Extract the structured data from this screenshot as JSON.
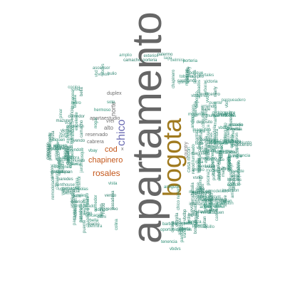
{
  "words": {
    "apartamento": "apartamento",
    "bogota": "bogota",
    "chico": "chico",
    "rosales": "rosales",
    "chapinero": "chapinero",
    "cod": "cod",
    "norte": "norte",
    "alto": "alto",
    "apartaestudio": "apartaestudio",
    "duplex": "duplex",
    "reservado": "reservado",
    "country": "country",
    "cabrera": "cabrera",
    "vrei": "vrei",
    "x": "x",
    "casa_rincon": "casa rincon",
    "chico_navarra": "chico navarra",
    "vista": "vista",
    "hermoso": "hermoso",
    "antiguo": "antiguo",
    "balcones": "balcones",
    "ubicacion": "ubicacion",
    "laureles": "laureles",
    "barbara": "barbara",
    "oportunidad": "oportunidad",
    "vbdvs": "vbdvs",
    "tenencia": "tenencia",
    "moderno": "moderno",
    "nogal": "nogal",
    "soto": "soto",
    "vbay": "vbay"
  },
  "small_words": [
    "ciudad",
    "inversion",
    "camacho",
    "vcbr",
    "magnifico",
    "victoria",
    "salitre",
    "chapinero",
    "nicolas",
    "santa",
    "vista",
    "cedritos",
    "calle",
    "usaquen",
    "bella",
    "vbd",
    "mazuren",
    "habitacion",
    "barrio",
    "suba",
    "niza",
    "portales",
    "pasadena",
    "lago",
    "gaitan",
    "quinta",
    "paredes",
    "modelia",
    "kennedy",
    "galerias",
    "retiro",
    "virrey",
    "andino",
    "lourdes",
    "marly",
    "teusaquillo",
    "palermo",
    "alhambra",
    "recreo",
    "belmira",
    "toberin",
    "cabrera",
    "multicentro",
    "pinar",
    "colina",
    "mirandela",
    "britalia",
    "cantalejo",
    "bosque",
    "granada",
    "estrella",
    "puente",
    "terraza",
    "penthouse",
    "acabados",
    "parqueadero",
    "deposito",
    "estudio",
    "comedor",
    "cocina",
    "chimenea",
    "ascensor",
    "porteria",
    "jardin",
    "vigilancia",
    "piscina",
    "gimnasio",
    "conjunto",
    "edificio",
    "exterior",
    "interior",
    "remodelado",
    "iluminado",
    "amplio",
    "nuevo",
    "usado",
    "venta",
    "arriendo",
    "vendo",
    "arriendo",
    "excelente",
    "barbara",
    "oportunidad",
    "vbdvs",
    "vkmw",
    "vcyrr",
    "vsrko",
    "vqsox",
    "vvdm",
    "cookeron",
    "bellavista",
    "dalhi",
    "vbdbp",
    "bulio",
    "recod",
    "casblanca",
    "aliquen",
    "vbdga"
  ]
}
